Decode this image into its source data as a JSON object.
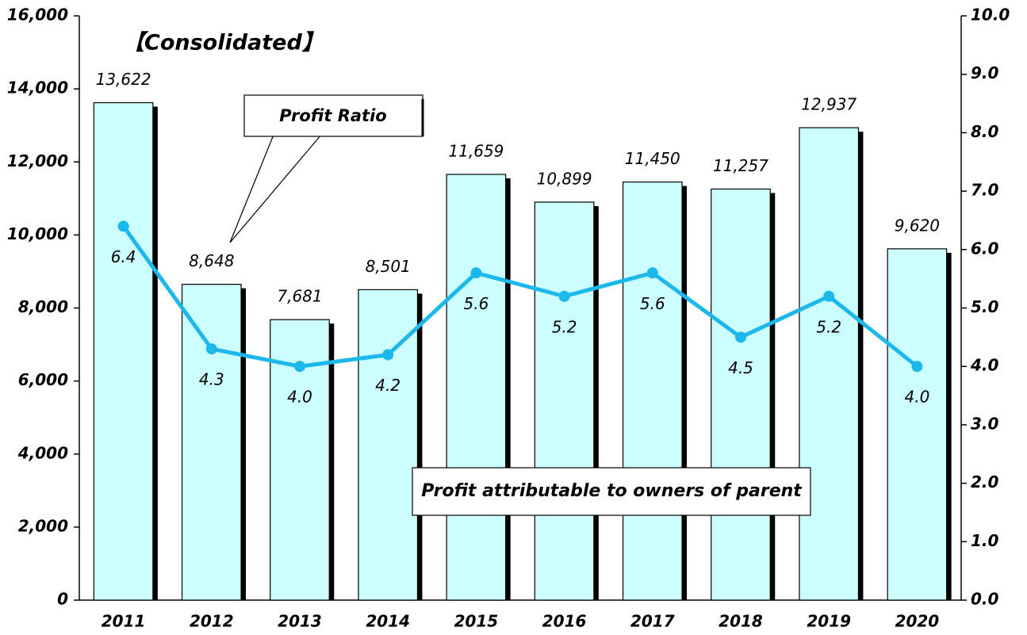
{
  "chart_data": {
    "type": "bar",
    "title": "【Consolidated】",
    "categories": [
      "2011",
      "2012",
      "2013",
      "2014",
      "2015",
      "2016",
      "2017",
      "2018",
      "2019",
      "2020"
    ],
    "series": [
      {
        "name": "Profit attributable to owners of parent",
        "type": "bar",
        "color": "#ccffff",
        "values": [
          13622,
          8648,
          7681,
          8501,
          11659,
          10899,
          11450,
          11257,
          12937,
          9620
        ],
        "value_labels": [
          "13,622",
          "8,648",
          "7,681",
          "8,501",
          "11,659",
          "10,899",
          "11,450",
          "11,257",
          "12,937",
          "9,620"
        ]
      },
      {
        "name": "Profit Ratio",
        "type": "line",
        "axis": "y2",
        "color": "#1cb8ec",
        "values": [
          6.4,
          4.3,
          4.0,
          4.2,
          5.6,
          5.2,
          5.6,
          4.5,
          5.2,
          4.0
        ],
        "value_labels": [
          "6.4",
          "4.3",
          "4.0",
          "4.2",
          "5.6",
          "5.2",
          "5.6",
          "4.5",
          "5.2",
          "4.0"
        ]
      }
    ],
    "ylim": [
      0,
      16000
    ],
    "yticks": [
      0,
      {
        "value": 2000,
        "label": "2,000"
      },
      {
        "value": 4000,
        "label": "4,000"
      },
      {
        "value": 6000,
        "label": "6,000"
      },
      {
        "value": 8000,
        "label": "8,000"
      },
      {
        "value": 10000,
        "label": "10,000"
      },
      {
        "value": 12000,
        "label": "12,000"
      },
      {
        "value": 14000,
        "label": "14,000"
      },
      {
        "value": 16000,
        "label": "16,000"
      }
    ],
    "y2lim": [
      0,
      10
    ],
    "y2ticks": [
      {
        "value": 0,
        "label": "0.0"
      },
      {
        "value": 1,
        "label": "1.0"
      },
      {
        "value": 2,
        "label": "2.0"
      },
      {
        "value": 3,
        "label": "3.0"
      },
      {
        "value": 4,
        "label": "4.0"
      },
      {
        "value": 5,
        "label": "5.0"
      },
      {
        "value": 6,
        "label": "6.0"
      },
      {
        "value": 7,
        "label": "7.0"
      },
      {
        "value": 8,
        "label": "8.0"
      },
      {
        "value": 9,
        "label": "9.0"
      },
      {
        "value": 10,
        "label": "10.0"
      }
    ],
    "grid": false
  }
}
